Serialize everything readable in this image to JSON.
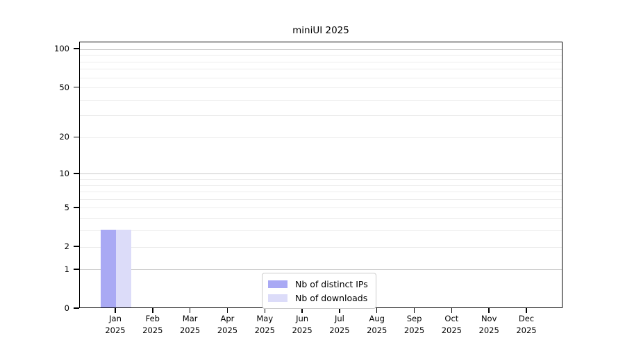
{
  "chart_data": {
    "type": "bar",
    "title": "miniUI 2025",
    "categories": [
      "Jan 2025",
      "Feb 2025",
      "Mar 2025",
      "Apr 2025",
      "May 2025",
      "Jun 2025",
      "Jul 2025",
      "Aug 2025",
      "Sep 2025",
      "Oct 2025",
      "Nov 2025",
      "Dec 2025"
    ],
    "series": [
      {
        "name": "Nb of distinct IPs",
        "color": "#a9a9f4",
        "values": [
          3,
          0,
          0,
          0,
          0,
          0,
          0,
          0,
          0,
          0,
          0,
          0
        ]
      },
      {
        "name": "Nb of downloads",
        "color": "#dcdcf9",
        "values": [
          3,
          0,
          0,
          0,
          0,
          0,
          0,
          0,
          0,
          0,
          0,
          0
        ]
      }
    ],
    "y_scale": "log10(1+y)",
    "y_axis": {
      "labeled_ticks": [
        0,
        1,
        2,
        5,
        10,
        20,
        50,
        100
      ],
      "decade_grid_ticks": [
        1,
        10,
        100
      ],
      "minor_grid_ticks": [
        2,
        5,
        3,
        4,
        6,
        7,
        8,
        9,
        20,
        50,
        30,
        40,
        60,
        70,
        80,
        90
      ],
      "top_value": 113.5
    },
    "legend": {
      "position": "lower center",
      "entries": [
        "Nb of distinct IPs",
        "Nb of downloads"
      ]
    },
    "grid": {
      "decade_color": "#c9c9c9",
      "minor_color": "#ececec"
    },
    "colors": {
      "axis": "#000000",
      "background": "#ffffff",
      "legend_border": "#cbcbcb"
    }
  }
}
